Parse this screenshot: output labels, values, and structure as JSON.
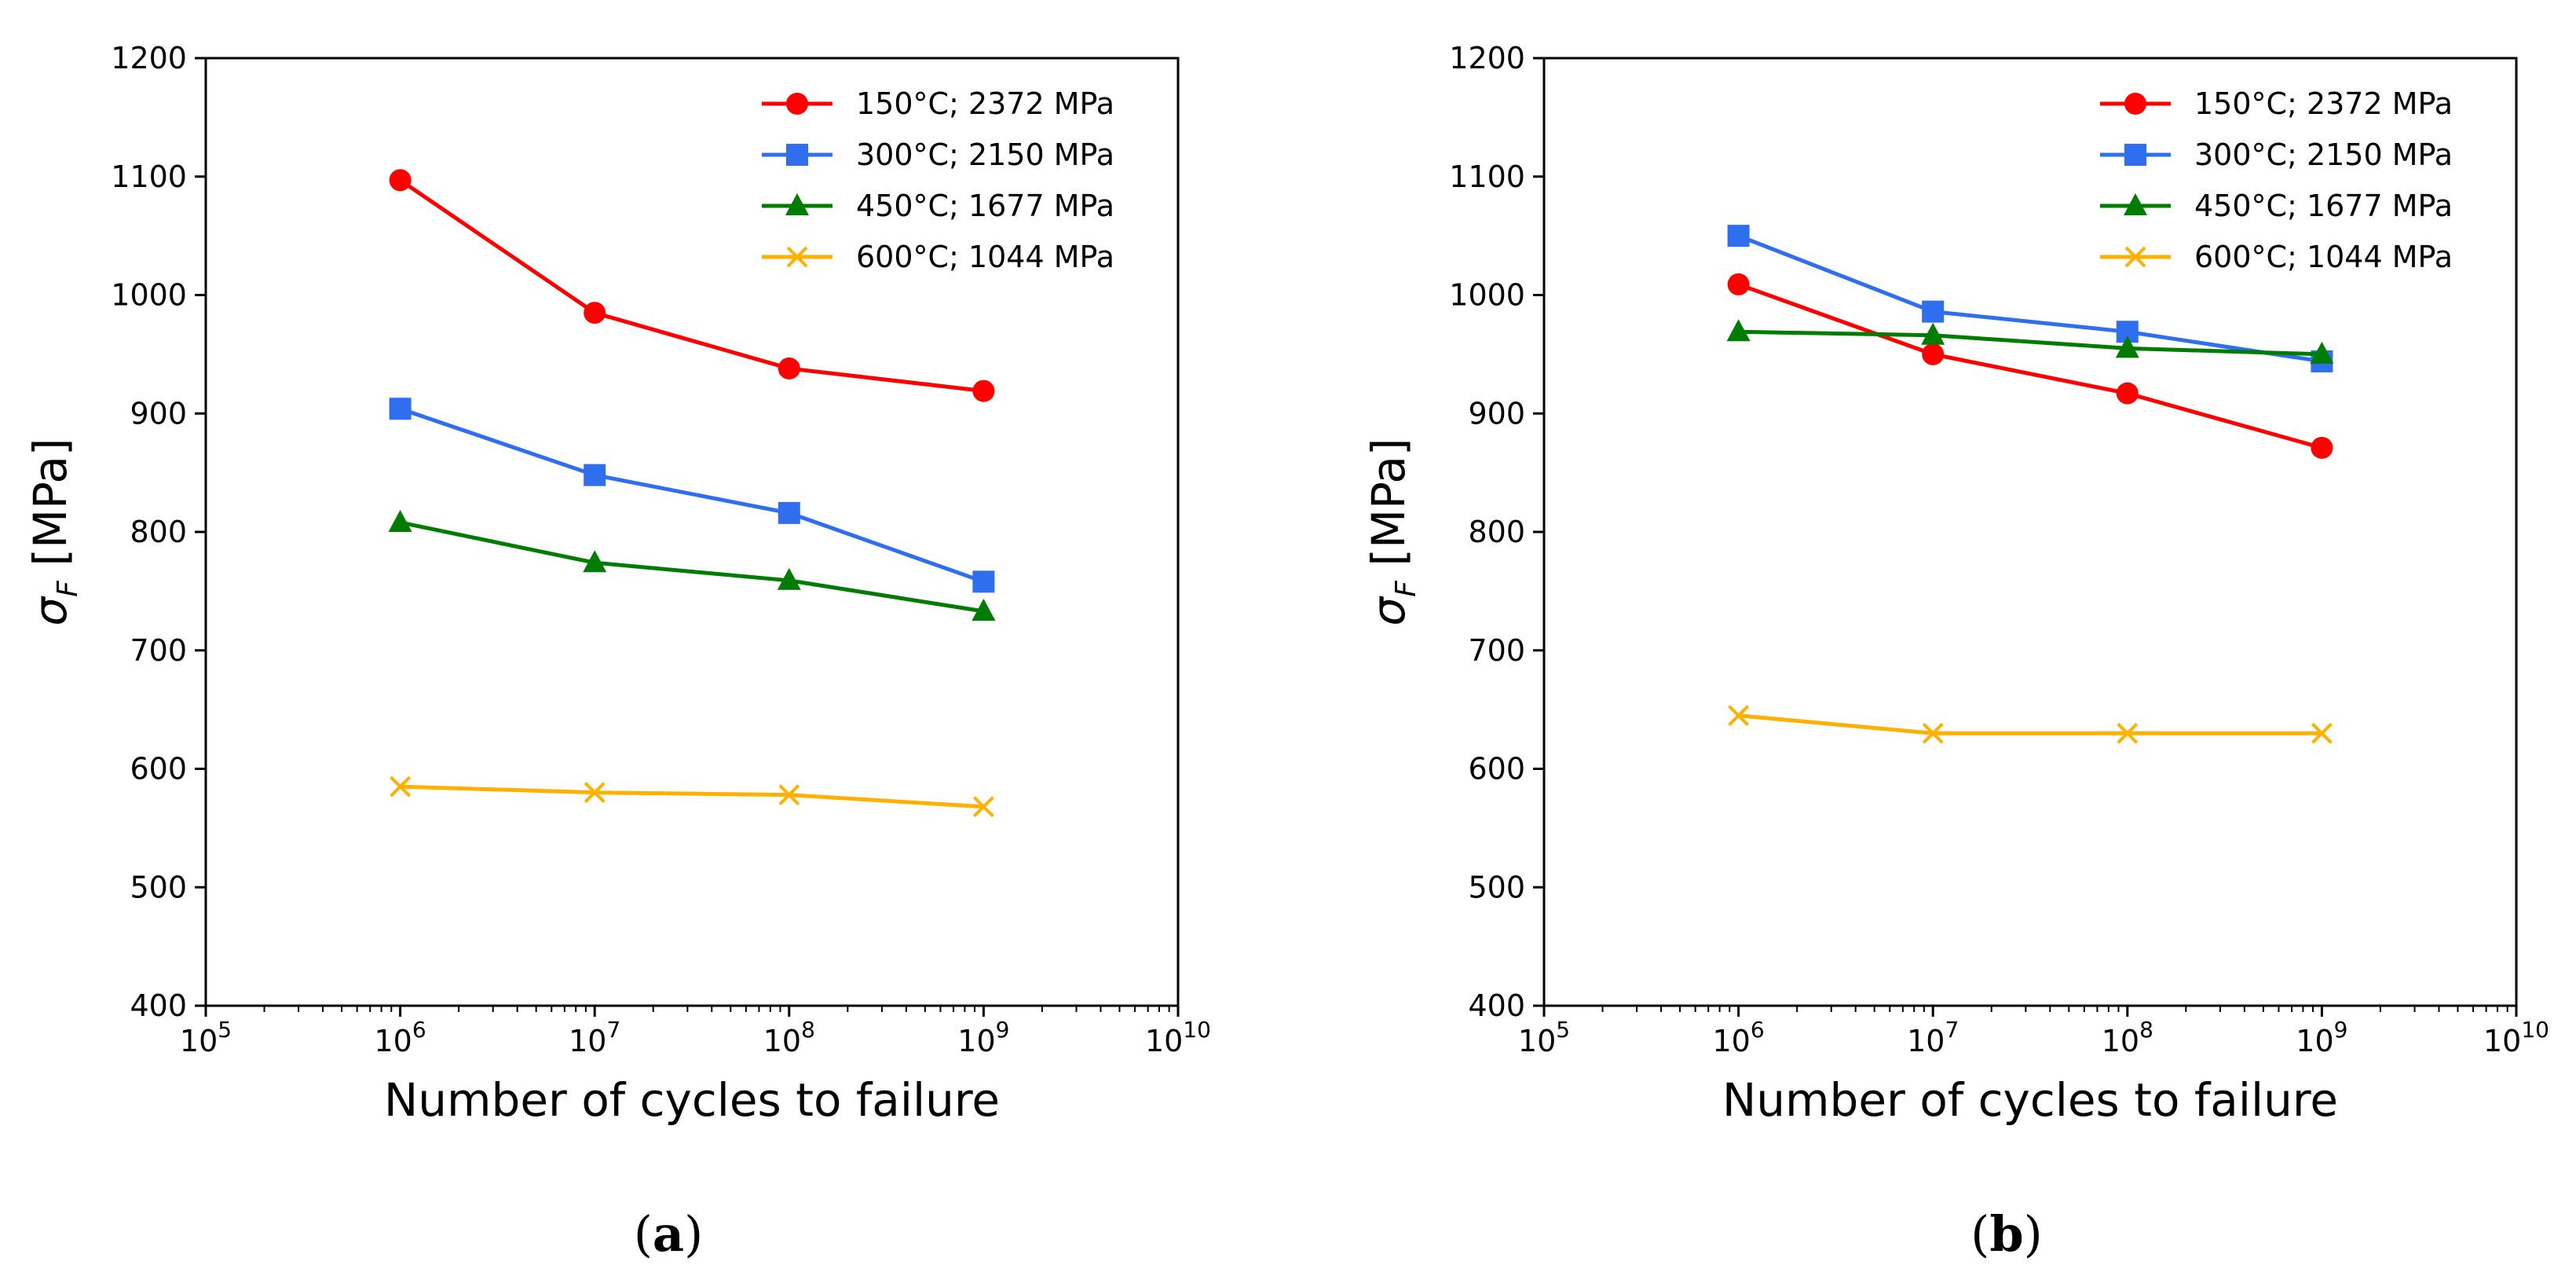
{
  "chart_data": [
    {
      "type": "line",
      "panel": "(a)",
      "caption": {
        "open": "(",
        "letter": "a",
        "close": ")"
      },
      "xlabel": "Number of cycles to failure",
      "ylabel": "σF [MPa]",
      "ylabel_parts": {
        "symbol": "σ",
        "subscript": "F",
        "unit": " [MPa]"
      },
      "x_scale": "log",
      "xlim": [
        100000,
        10000000000
      ],
      "ylim": [
        400,
        1200
      ],
      "x_ticks": [
        {
          "value": 100000,
          "base": "10",
          "exp": "5"
        },
        {
          "value": 1000000,
          "base": "10",
          "exp": "6"
        },
        {
          "value": 10000000,
          "base": "10",
          "exp": "7"
        },
        {
          "value": 100000000,
          "base": "10",
          "exp": "8"
        },
        {
          "value": 1000000000,
          "base": "10",
          "exp": "9"
        },
        {
          "value": 10000000000,
          "base": "10",
          "exp": "10"
        }
      ],
      "y_ticks": [
        400,
        500,
        600,
        700,
        800,
        900,
        1000,
        1100,
        1200
      ],
      "grid": false,
      "legend_position": "top-right",
      "x": [
        1000000,
        10000000,
        100000000,
        1000000000
      ],
      "series": [
        {
          "name": "150°C; 2372 MPa",
          "color": "#ff0000",
          "marker": "circle",
          "values": [
            1097,
            985,
            938,
            919
          ]
        },
        {
          "name": "300°C; 2150 MPa",
          "color": "#2f6fef",
          "marker": "square",
          "values": [
            904,
            848,
            816,
            758
          ]
        },
        {
          "name": "450°C; 1677 MPa",
          "color": "#007c00",
          "marker": "triangle",
          "values": [
            808,
            774,
            759,
            733
          ]
        },
        {
          "name": "600°C; 1044 MPa",
          "color": "#ffb000",
          "marker": "x",
          "values": [
            585,
            580,
            578,
            568
          ]
        }
      ]
    },
    {
      "type": "line",
      "panel": "(b)",
      "caption": {
        "open": "(",
        "letter": "b",
        "close": ")"
      },
      "xlabel": "Number of cycles to failure",
      "ylabel": "σF [MPa]",
      "ylabel_parts": {
        "symbol": "σ",
        "subscript": "F",
        "unit": " [MPa]"
      },
      "x_scale": "log",
      "xlim": [
        100000,
        10000000000
      ],
      "ylim": [
        400,
        1200
      ],
      "x_ticks": [
        {
          "value": 100000,
          "base": "10",
          "exp": "5"
        },
        {
          "value": 1000000,
          "base": "10",
          "exp": "6"
        },
        {
          "value": 10000000,
          "base": "10",
          "exp": "7"
        },
        {
          "value": 100000000,
          "base": "10",
          "exp": "8"
        },
        {
          "value": 1000000000,
          "base": "10",
          "exp": "9"
        },
        {
          "value": 10000000000,
          "base": "10",
          "exp": "10"
        }
      ],
      "y_ticks": [
        400,
        500,
        600,
        700,
        800,
        900,
        1000,
        1100,
        1200
      ],
      "grid": false,
      "legend_position": "top-right",
      "x": [
        1000000,
        10000000,
        100000000,
        1000000000
      ],
      "series": [
        {
          "name": "150°C; 2372 MPa",
          "color": "#ff0000",
          "marker": "circle",
          "values": [
            1009,
            950,
            917,
            871
          ]
        },
        {
          "name": "300°C; 2150 MPa",
          "color": "#2f6fef",
          "marker": "square",
          "values": [
            1050,
            986,
            969,
            944
          ]
        },
        {
          "name": "450°C; 1677 MPa",
          "color": "#007c00",
          "marker": "triangle",
          "values": [
            969,
            966,
            955,
            950
          ]
        },
        {
          "name": "600°C; 1044 MPa",
          "color": "#ffb000",
          "marker": "x",
          "values": [
            645,
            630,
            630,
            630
          ]
        }
      ]
    }
  ]
}
